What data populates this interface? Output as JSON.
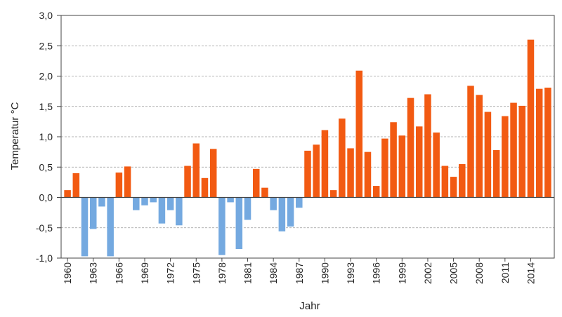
{
  "chart_data": {
    "type": "bar",
    "title": "",
    "xlabel": "Jahr",
    "ylabel": "Temperatur °C",
    "ylim": [
      -1.0,
      3.0
    ],
    "y_ticks": [
      -1.0,
      -0.5,
      0.0,
      0.5,
      1.0,
      1.5,
      2.0,
      2.5,
      3.0
    ],
    "y_tick_labels": [
      "-1,0",
      "-0,5",
      "0,0",
      "0,5",
      "1,0",
      "1,5",
      "2,0",
      "2,5",
      "3,0"
    ],
    "grid": true,
    "x_tick_labels": [
      "1960",
      "1963",
      "1966",
      "1969",
      "1972",
      "1975",
      "1978",
      "1981",
      "1984",
      "1987",
      "1990",
      "1993",
      "1996",
      "1999",
      "2002",
      "2005",
      "2008",
      "2011",
      "2014"
    ],
    "categories": [
      1960,
      1961,
      1962,
      1963,
      1964,
      1965,
      1966,
      1967,
      1968,
      1969,
      1970,
      1971,
      1972,
      1973,
      1974,
      1975,
      1976,
      1977,
      1978,
      1979,
      1980,
      1981,
      1982,
      1983,
      1984,
      1985,
      1986,
      1987,
      1988,
      1989,
      1990,
      1991,
      1992,
      1993,
      1994,
      1995,
      1996,
      1997,
      1998,
      1999,
      2000,
      2001,
      2002,
      2003,
      2004,
      2005,
      2006,
      2007,
      2008,
      2009,
      2010,
      2011,
      2012,
      2013,
      2014,
      2015,
      2016
    ],
    "values": [
      0.12,
      0.4,
      -0.97,
      -0.52,
      -0.15,
      -0.97,
      0.41,
      0.51,
      -0.21,
      -0.13,
      -0.08,
      -0.43,
      -0.21,
      -0.46,
      0.52,
      0.89,
      0.32,
      0.8,
      -0.95,
      -0.08,
      -0.85,
      -0.37,
      0.47,
      0.16,
      -0.21,
      -0.56,
      -0.48,
      -0.17,
      0.77,
      0.87,
      1.11,
      0.12,
      1.3,
      0.81,
      2.09,
      0.75,
      0.19,
      0.97,
      1.24,
      1.02,
      1.64,
      1.17,
      1.7,
      1.07,
      0.52,
      0.34,
      0.55,
      1.84,
      1.69,
      1.41,
      0.78,
      1.34,
      1.56,
      1.51,
      2.6,
      1.79,
      1.81
    ],
    "colors": {
      "positive": "#f25a12",
      "negative": "#74a9e0",
      "grid": "#9a9a9a",
      "axis": "#444444"
    }
  }
}
